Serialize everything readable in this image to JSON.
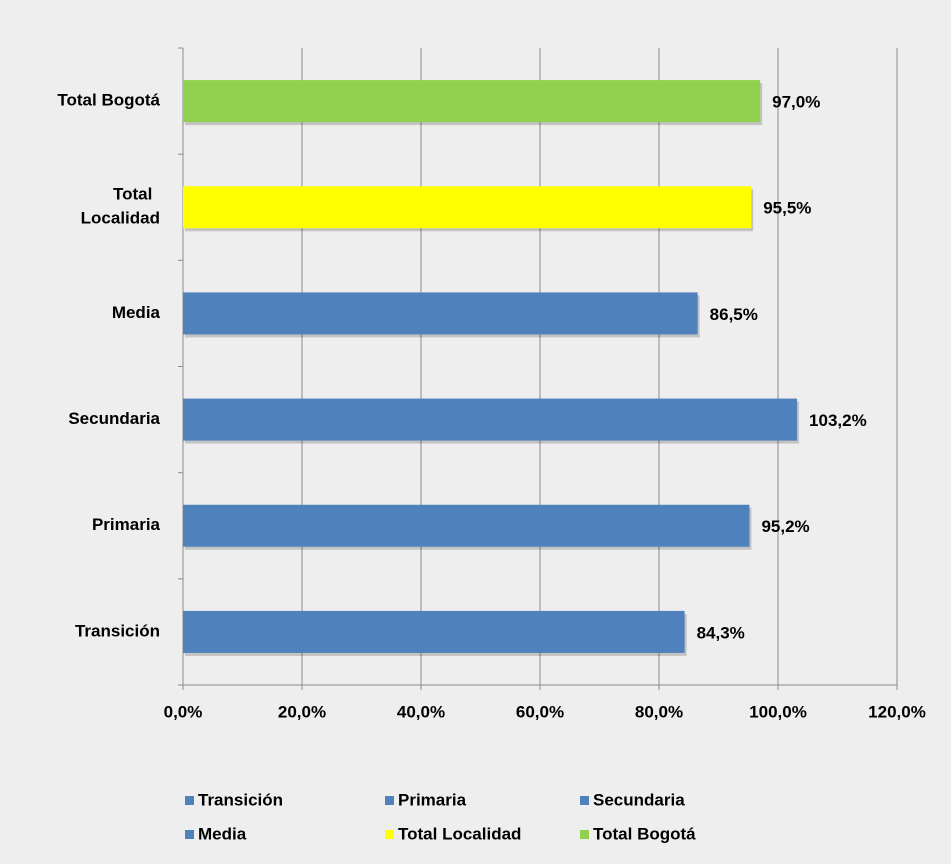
{
  "chart_data": {
    "type": "hbar",
    "categories": [
      "Transición",
      "Primaria",
      "Secundaria",
      "Media",
      "Total Localidad",
      "Total Bogotá"
    ],
    "values": [
      84.3,
      95.2,
      103.2,
      86.5,
      95.5,
      97.0
    ],
    "value_labels": [
      "84,3%",
      "95,2%",
      "103,2%",
      "86,5%",
      "95,5%",
      "97,0%"
    ],
    "colors": [
      "#4f81bd",
      "#4f81bd",
      "#4f81bd",
      "#4f81bd",
      "#ffff00",
      "#92d050"
    ],
    "xlim": [
      0,
      120
    ],
    "xticks": [
      {
        "value": 0,
        "label": "0,0%"
      },
      {
        "value": 20,
        "label": "20,0%"
      },
      {
        "value": 40,
        "label": "40,0%"
      },
      {
        "value": 60,
        "label": "60,0%"
      },
      {
        "value": 80,
        "label": "80,0%"
      },
      {
        "value": 100,
        "label": "100,0%"
      },
      {
        "value": 120,
        "label": "120,0%"
      }
    ],
    "grid": true,
    "legend": "bottom"
  }
}
